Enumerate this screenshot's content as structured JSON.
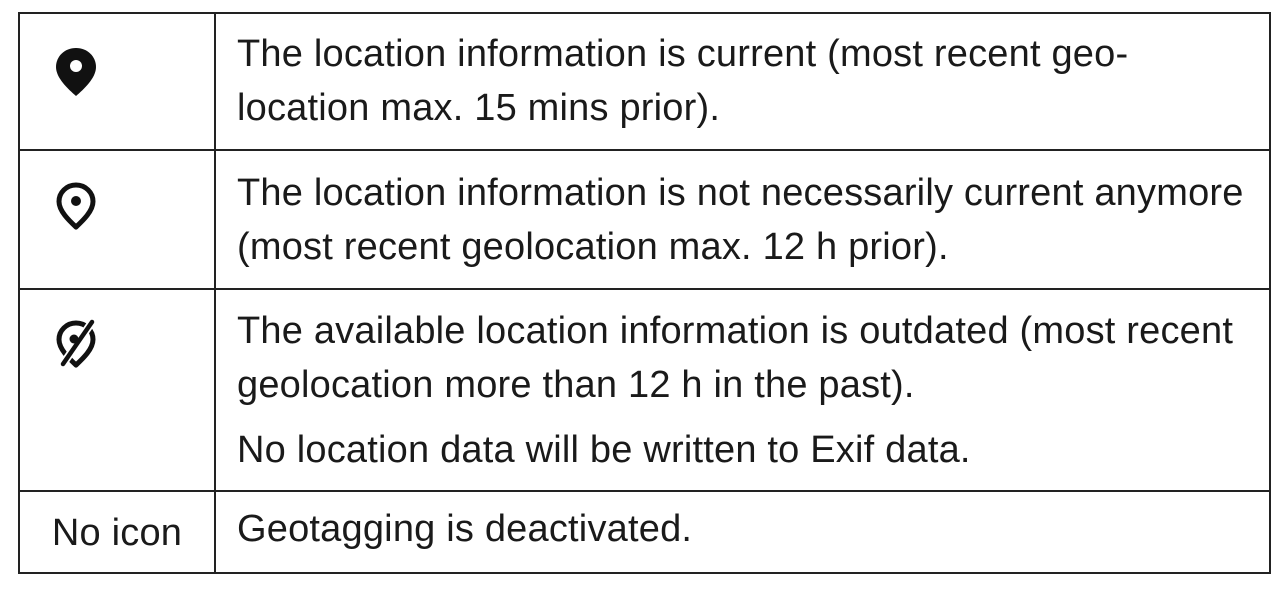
{
  "table": {
    "rows": [
      {
        "icon": "location-pin-filled-icon",
        "description": "The location information is current (most recent geo-location max. 15 mins prior)."
      },
      {
        "icon": "location-pin-outline-icon",
        "description": "The location information is not necessarily current anymore (most recent geolocation max. 12 h prior)."
      },
      {
        "icon": "location-pin-crossed-icon",
        "description": "The available location information is outdated (most recent geolocation more than 12 h in the past).",
        "note": "No location data will be written to Exif data."
      },
      {
        "icon_label": "No icon",
        "description": "Geotagging is deactivated."
      }
    ]
  }
}
